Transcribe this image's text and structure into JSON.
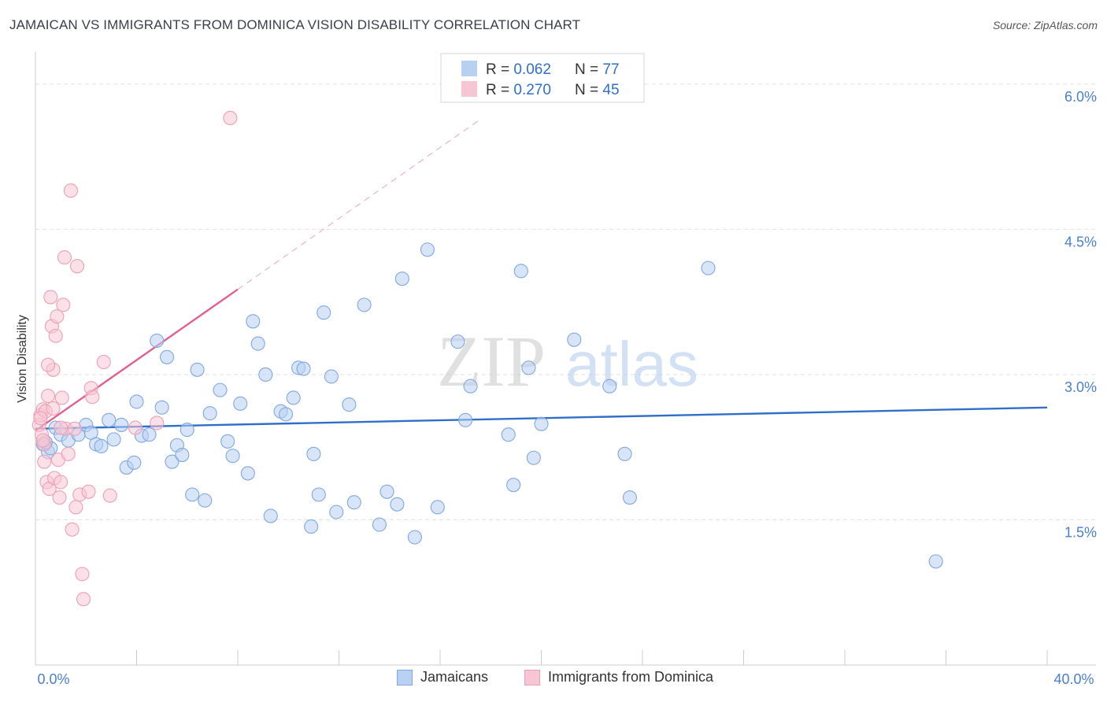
{
  "title": "JAMAICAN VS IMMIGRANTS FROM DOMINICA VISION DISABILITY CORRELATION CHART",
  "source": "Source: ZipAtlas.com",
  "watermark": {
    "zip": "ZIP",
    "atlas": "atlas"
  },
  "chart_data": {
    "type": "scatter",
    "xlabel": "",
    "ylabel": "Vision Disability",
    "xlim": [
      0,
      40
    ],
    "ylim": [
      0,
      6.3
    ],
    "x_tick_labels": [
      "0.0%",
      "40.0%"
    ],
    "y_ticks": [
      1.5,
      3.0,
      4.5,
      6.0
    ],
    "y_tick_labels": [
      "1.5%",
      "3.0%",
      "4.5%",
      "6.0%"
    ],
    "grid": true,
    "legend": {
      "position": "top-center",
      "entries": [
        {
          "r_label": "R = ",
          "r_value": "0.062",
          "n_label": "N = ",
          "n_value": "77"
        },
        {
          "r_label": "R = ",
          "r_value": "0.270",
          "n_label": "N = ",
          "n_value": "45"
        }
      ]
    },
    "series": [
      {
        "name": "Jamaicans",
        "color": "#7fa8e0",
        "fill": "#b8d0f2",
        "line_color": "#2f6fc9",
        "trend": {
          "x0": 0,
          "y0": 2.44,
          "x1": 40,
          "y1": 2.66
        },
        "points": [
          [
            0.3,
            2.28
          ],
          [
            0.5,
            2.2
          ],
          [
            0.8,
            2.45
          ],
          [
            1.0,
            2.38
          ],
          [
            1.3,
            2.32
          ],
          [
            1.7,
            2.38
          ],
          [
            2.0,
            2.48
          ],
          [
            2.2,
            2.4
          ],
          [
            2.4,
            2.28
          ],
          [
            2.6,
            2.26
          ],
          [
            2.9,
            2.53
          ],
          [
            3.1,
            2.33
          ],
          [
            3.4,
            2.48
          ],
          [
            3.6,
            2.04
          ],
          [
            3.9,
            2.09
          ],
          [
            4.0,
            2.72
          ],
          [
            4.2,
            2.37
          ],
          [
            4.5,
            2.38
          ],
          [
            4.8,
            3.35
          ],
          [
            5.0,
            2.66
          ],
          [
            5.2,
            3.18
          ],
          [
            5.4,
            2.1
          ],
          [
            5.6,
            2.27
          ],
          [
            5.8,
            2.17
          ],
          [
            6.0,
            2.43
          ],
          [
            6.2,
            1.76
          ],
          [
            6.4,
            3.05
          ],
          [
            6.7,
            1.7
          ],
          [
            6.9,
            2.6
          ],
          [
            7.3,
            2.84
          ],
          [
            7.6,
            2.31
          ],
          [
            7.8,
            2.16
          ],
          [
            8.1,
            2.7
          ],
          [
            8.4,
            1.98
          ],
          [
            8.6,
            3.55
          ],
          [
            8.8,
            3.32
          ],
          [
            9.1,
            3.0
          ],
          [
            9.3,
            1.54
          ],
          [
            9.7,
            2.62
          ],
          [
            9.9,
            2.59
          ],
          [
            10.2,
            2.76
          ],
          [
            10.4,
            3.07
          ],
          [
            10.6,
            3.06
          ],
          [
            10.9,
            1.43
          ],
          [
            11.0,
            2.18
          ],
          [
            11.2,
            1.76
          ],
          [
            11.4,
            3.64
          ],
          [
            11.7,
            2.98
          ],
          [
            11.9,
            1.58
          ],
          [
            12.4,
            2.69
          ],
          [
            12.6,
            1.68
          ],
          [
            13.0,
            3.72
          ],
          [
            13.6,
            1.45
          ],
          [
            13.9,
            1.79
          ],
          [
            14.3,
            1.66
          ],
          [
            14.5,
            3.99
          ],
          [
            15.0,
            1.32
          ],
          [
            15.5,
            4.29
          ],
          [
            15.9,
            1.63
          ],
          [
            16.7,
            3.34
          ],
          [
            17.0,
            2.53
          ],
          [
            17.2,
            2.88
          ],
          [
            18.7,
            2.38
          ],
          [
            18.9,
            1.86
          ],
          [
            19.2,
            4.07
          ],
          [
            19.5,
            3.07
          ],
          [
            19.7,
            2.14
          ],
          [
            20.0,
            2.49
          ],
          [
            21.3,
            3.36
          ],
          [
            22.7,
            2.88
          ],
          [
            23.3,
            2.18
          ],
          [
            23.5,
            1.73
          ],
          [
            26.6,
            4.1
          ],
          [
            35.6,
            1.07
          ],
          [
            0.6,
            2.24
          ],
          [
            0.4,
            2.3
          ]
        ]
      },
      {
        "name": "Immigrants from Dominica",
        "color": "#eaa0b8",
        "fill": "#f7c6d4",
        "line_color": "#e0608f",
        "trend": {
          "x0": 0,
          "y0": 2.42,
          "x1": 8.0,
          "y1": 3.88
        },
        "trend_ext": {
          "x0": 8.0,
          "y0": 3.88,
          "x1": 17.5,
          "y1": 5.62
        },
        "points": [
          [
            0.15,
            2.48
          ],
          [
            0.2,
            2.58
          ],
          [
            0.25,
            2.38
          ],
          [
            0.3,
            2.64
          ],
          [
            0.35,
            2.1
          ],
          [
            0.35,
            2.28
          ],
          [
            0.4,
            2.62
          ],
          [
            0.45,
            1.89
          ],
          [
            0.5,
            2.78
          ],
          [
            0.55,
            1.82
          ],
          [
            0.6,
            3.8
          ],
          [
            0.65,
            3.5
          ],
          [
            0.7,
            2.65
          ],
          [
            0.75,
            1.93
          ],
          [
            0.8,
            3.4
          ],
          [
            0.85,
            3.6
          ],
          [
            0.9,
            2.12
          ],
          [
            0.95,
            1.73
          ],
          [
            1.0,
            1.89
          ],
          [
            1.05,
            2.76
          ],
          [
            1.1,
            3.72
          ],
          [
            1.15,
            4.21
          ],
          [
            1.2,
            2.44
          ],
          [
            1.3,
            2.18
          ],
          [
            1.4,
            4.9
          ],
          [
            1.45,
            1.4
          ],
          [
            1.55,
            2.44
          ],
          [
            1.6,
            1.63
          ],
          [
            1.65,
            4.12
          ],
          [
            1.75,
            1.76
          ],
          [
            1.85,
            0.94
          ],
          [
            1.9,
            0.68
          ],
          [
            2.1,
            1.79
          ],
          [
            2.2,
            2.86
          ],
          [
            2.25,
            2.77
          ],
          [
            2.7,
            3.13
          ],
          [
            2.95,
            1.75
          ],
          [
            3.95,
            2.45
          ],
          [
            4.8,
            2.5
          ],
          [
            7.7,
            5.65
          ],
          [
            0.2,
            2.55
          ],
          [
            0.3,
            2.32
          ],
          [
            0.7,
            3.05
          ],
          [
            0.5,
            3.1
          ],
          [
            1.0,
            2.45
          ]
        ]
      }
    ]
  }
}
